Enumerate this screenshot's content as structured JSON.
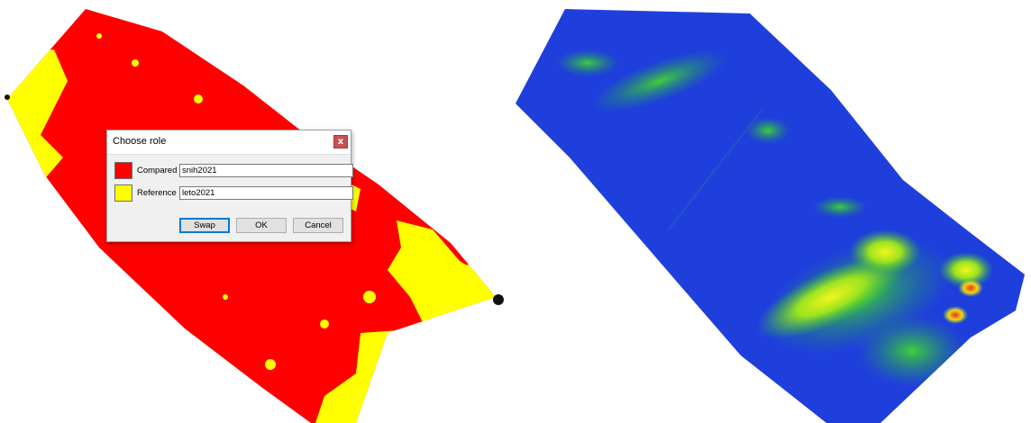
{
  "dialog": {
    "title": "Choose role",
    "close_glyph": "x",
    "rows": [
      {
        "label": "Compared",
        "value": "snih2021",
        "color": "#ff0000"
      },
      {
        "label": "Reference",
        "value": "leto2021",
        "color": "#ffff00"
      }
    ],
    "buttons": {
      "swap": "Swap",
      "ok": "OK",
      "cancel": "Cancel"
    }
  },
  "colors": {
    "compared": "#ff0000",
    "reference": "#ffff00",
    "heat_low": "#1f3fe0",
    "heat_mid": "#2fbf3a",
    "heat_high": "#e8f21a"
  }
}
